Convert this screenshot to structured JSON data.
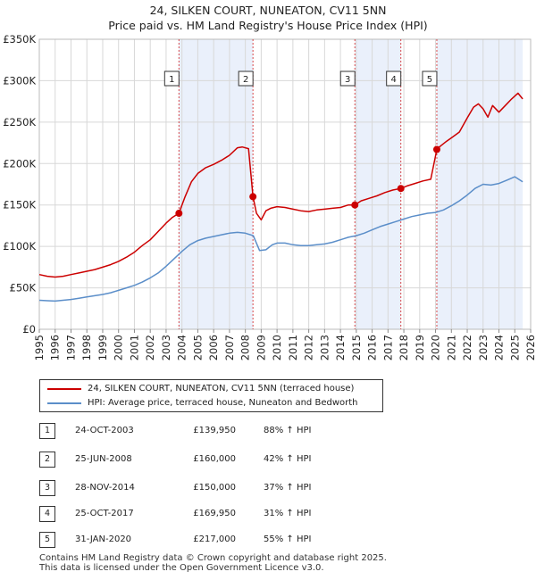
{
  "title": {
    "line1": "24, SILKEN COURT, NUNEATON, CV11 5NN",
    "line2": "Price paid vs. HM Land Registry's House Price Index (HPI)"
  },
  "colors": {
    "property": "#cc0000",
    "hpi": "#5b8ec9",
    "shade": "#eaf0fb",
    "grid": "#d8d8d8"
  },
  "chart_data": {
    "type": "line",
    "title": "24, SILKEN COURT, NUNEATON, CV11 5NN — Price paid vs. HM Land Registry's House Price Index (HPI)",
    "xlabel": "",
    "ylabel": "",
    "xlim": [
      1995,
      2026
    ],
    "ylim": [
      0,
      350000
    ],
    "y_ticks": [
      0,
      50000,
      100000,
      150000,
      200000,
      250000,
      300000,
      350000
    ],
    "y_tick_labels": [
      "£0",
      "£50K",
      "£100K",
      "£150K",
      "£200K",
      "£250K",
      "£300K",
      "£350K"
    ],
    "x_ticks": [
      "1995",
      "1996",
      "1997",
      "1998",
      "1999",
      "2000",
      "2001",
      "2002",
      "2003",
      "2004",
      "2005",
      "2006",
      "2007",
      "2008",
      "2009",
      "2010",
      "2011",
      "2012",
      "2013",
      "2014",
      "2015",
      "2016",
      "2017",
      "2018",
      "2019",
      "2020",
      "2021",
      "2022",
      "2023",
      "2024",
      "2025",
      "2026"
    ],
    "grid": true,
    "series": [
      {
        "name": "24, SILKEN COURT, NUNEATON, CV11 5NN (terraced house)",
        "color": "#cc0000",
        "x": [
          1995.0,
          1995.5,
          1996.0,
          1996.5,
          1997.0,
          1997.5,
          1998.0,
          1998.5,
          1999.0,
          1999.5,
          2000.0,
          2000.5,
          2001.0,
          2001.5,
          2002.0,
          2002.5,
          2003.0,
          2003.4,
          2003.81,
          2004.2,
          2004.6,
          2005.0,
          2005.5,
          2006.0,
          2006.5,
          2007.0,
          2007.5,
          2007.8,
          2008.2,
          2008.48,
          2008.7,
          2009.0,
          2009.3,
          2009.6,
          2010.0,
          2010.5,
          2011.0,
          2011.5,
          2012.0,
          2012.5,
          2013.0,
          2013.5,
          2014.0,
          2014.5,
          2014.91,
          2015.3,
          2015.8,
          2016.3,
          2016.8,
          2017.3,
          2017.81,
          2018.2,
          2018.7,
          2019.2,
          2019.7,
          2020.08,
          2020.3,
          2020.7,
          2021.0,
          2021.5,
          2022.0,
          2022.4,
          2022.7,
          2023.0,
          2023.3,
          2023.6,
          2024.0,
          2024.4,
          2024.8,
          2025.2,
          2025.5
        ],
        "y": [
          66000,
          64000,
          63000,
          64000,
          66000,
          68000,
          70000,
          72000,
          75000,
          78000,
          82000,
          87000,
          93000,
          101000,
          108000,
          118000,
          128000,
          135000,
          139950,
          160000,
          178000,
          188000,
          195000,
          199000,
          204000,
          210000,
          219000,
          220000,
          218000,
          160000,
          140000,
          132000,
          143000,
          146000,
          148000,
          147000,
          145000,
          143000,
          142000,
          144000,
          145000,
          146000,
          147000,
          150000,
          150000,
          155000,
          158000,
          161000,
          165000,
          168000,
          169950,
          173000,
          176000,
          179000,
          181000,
          217000,
          221000,
          227000,
          231000,
          238000,
          255000,
          268000,
          272000,
          266000,
          256000,
          270000,
          262000,
          270000,
          278000,
          285000,
          278000
        ]
      },
      {
        "name": "HPI: Average price, terraced house, Nuneaton and Bedworth",
        "color": "#5b8ec9",
        "x": [
          1995.0,
          1995.5,
          1996.0,
          1996.5,
          1997.0,
          1997.5,
          1998.0,
          1998.5,
          1999.0,
          1999.5,
          2000.0,
          2000.5,
          2001.0,
          2001.5,
          2002.0,
          2002.5,
          2003.0,
          2003.5,
          2004.0,
          2004.5,
          2005.0,
          2005.5,
          2006.0,
          2006.5,
          2007.0,
          2007.5,
          2008.0,
          2008.5,
          2008.9,
          2009.3,
          2009.7,
          2010.0,
          2010.5,
          2011.0,
          2011.5,
          2012.0,
          2012.5,
          2013.0,
          2013.5,
          2014.0,
          2014.5,
          2015.0,
          2015.5,
          2016.0,
          2016.5,
          2017.0,
          2017.5,
          2018.0,
          2018.5,
          2019.0,
          2019.5,
          2020.0,
          2020.5,
          2021.0,
          2021.5,
          2022.0,
          2022.5,
          2023.0,
          2023.5,
          2024.0,
          2024.5,
          2025.0,
          2025.5
        ],
        "y": [
          35000,
          34500,
          34000,
          35000,
          36000,
          37500,
          39000,
          40500,
          42000,
          44000,
          47000,
          50000,
          53000,
          57000,
          62000,
          68000,
          76000,
          85000,
          94000,
          102000,
          107000,
          110000,
          112000,
          114000,
          116000,
          117000,
          116000,
          113000,
          95000,
          96000,
          102000,
          104000,
          104000,
          102000,
          101000,
          101000,
          102000,
          103000,
          105000,
          108000,
          111000,
          113000,
          116000,
          120000,
          124000,
          127000,
          130000,
          133000,
          136000,
          138000,
          140000,
          141000,
          144000,
          149000,
          155000,
          162000,
          170000,
          175000,
          174000,
          176000,
          180000,
          184000,
          178000
        ]
      }
    ],
    "sales": [
      {
        "n": "1",
        "year": 2003.81,
        "price": 139950,
        "date": "24-OCT-2003",
        "price_label": "£139,950",
        "hpi_label": "88% ↑ HPI"
      },
      {
        "n": "2",
        "year": 2008.48,
        "price": 160000,
        "date": "25-JUN-2008",
        "price_label": "£160,000",
        "hpi_label": "42% ↑ HPI"
      },
      {
        "n": "3",
        "year": 2014.91,
        "price": 150000,
        "date": "28-NOV-2014",
        "price_label": "£150,000",
        "hpi_label": "37% ↑ HPI"
      },
      {
        "n": "4",
        "year": 2017.81,
        "price": 169950,
        "date": "25-OCT-2017",
        "price_label": "£169,950",
        "hpi_label": "31% ↑ HPI"
      },
      {
        "n": "5",
        "year": 2020.08,
        "price": 217000,
        "date": "31-JAN-2020",
        "price_label": "£217,000",
        "hpi_label": "55% ↑ HPI"
      }
    ],
    "shaded_periods": [
      [
        2003.81,
        2008.48
      ],
      [
        2014.91,
        2017.81
      ],
      [
        2020.08,
        2025.5
      ]
    ],
    "legend_position": "below"
  },
  "legend": {
    "property": "24, SILKEN COURT, NUNEATON, CV11 5NN (terraced house)",
    "hpi": "HPI: Average price, terraced house, Nuneaton and Bedworth"
  },
  "footer": {
    "line1": "Contains HM Land Registry data © Crown copyright and database right 2025.",
    "line2": "This data is licensed under the Open Government Licence v3.0."
  }
}
